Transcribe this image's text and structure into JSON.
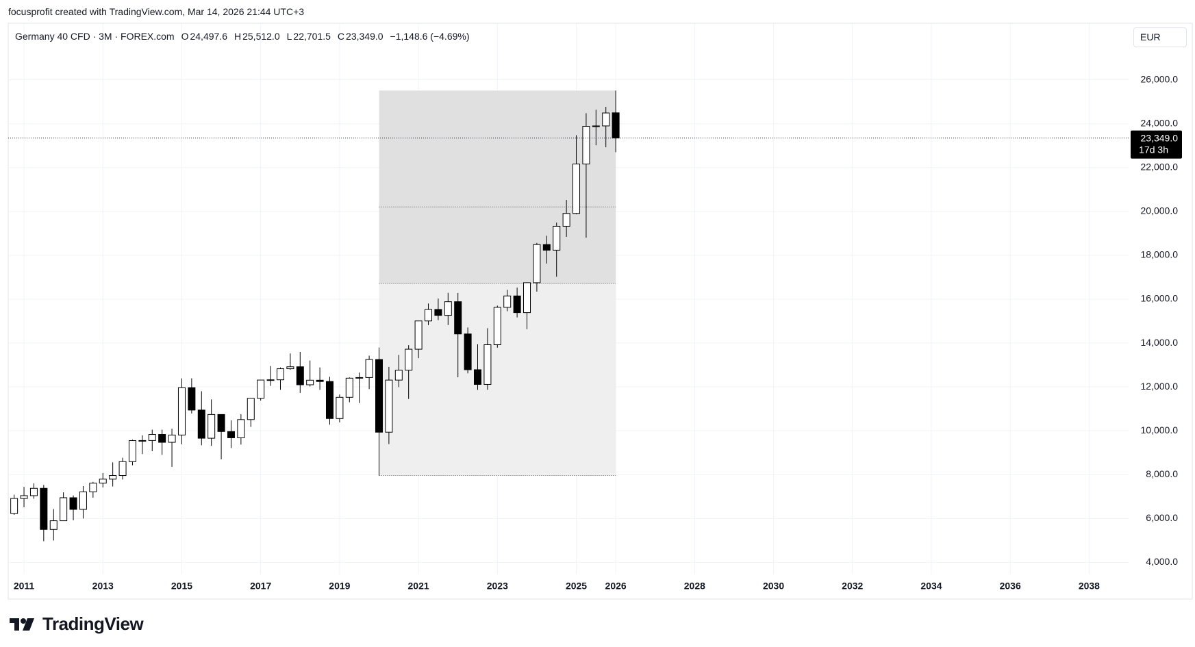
{
  "header": {
    "attribution": "focusprofit created with TradingView.com, Mar 14, 2026 21:44 UTC+3"
  },
  "branding": "TradingView",
  "chart_data": {
    "type": "candlestick",
    "title": "Germany 40 CFD · 3M · FOREX.com",
    "legend_values": [
      {
        "key": "O",
        "value": "24,497.6"
      },
      {
        "key": "H",
        "value": "25,512.0"
      },
      {
        "key": "L",
        "value": "22,701.5"
      },
      {
        "key": "C",
        "value": "23,349.0"
      }
    ],
    "change": "−1,148.6 (−4.69%)",
    "currency": "EUR",
    "countdown": "17d 3h",
    "last_price": {
      "value": 23349,
      "label": "23,349.0"
    },
    "up_color": "#ffffff",
    "down_color": "#000000",
    "border_color": "#000000",
    "grid": true,
    "x": [
      2010.75,
      2011,
      2011.25,
      2011.5,
      2011.75,
      2012,
      2012.25,
      2012.5,
      2012.75,
      2013,
      2013.25,
      2013.5,
      2013.75,
      2014,
      2014.25,
      2014.5,
      2014.75,
      2015,
      2015.25,
      2015.5,
      2015.75,
      2016,
      2016.25,
      2016.5,
      2016.75,
      2017,
      2017.25,
      2017.5,
      2017.75,
      2018,
      2018.25,
      2018.5,
      2018.75,
      2019,
      2019.25,
      2019.5,
      2019.75,
      2020,
      2020.25,
      2020.5,
      2020.75,
      2021,
      2021.25,
      2021.5,
      2021.75,
      2022,
      2022.25,
      2022.5,
      2022.75,
      2023,
      2023.25,
      2023.5,
      2023.75,
      2024,
      2024.25,
      2024.5,
      2024.75,
      2025,
      2025.25,
      2025.5,
      2025.75,
      2026
    ],
    "open": [
      6229,
      6914,
      7041,
      7376,
      5502,
      5898,
      6947,
      6416,
      7216,
      7612,
      7795,
      7959,
      8594,
      9552,
      9556,
      9833,
      9474,
      9806,
      11966,
      10945,
      9660,
      10743,
      9965,
      9680,
      10511,
      11481,
      12313,
      12325,
      12829,
      12918,
      12097,
      12306,
      12247,
      10559,
      11526,
      12399,
      12428,
      13249,
      9936,
      12311,
      12761,
      13719,
      15008,
      15531,
      15261,
      15885,
      14415,
      12784,
      12114,
      13924,
      15629,
      16148,
      15387,
      16752,
      18492,
      18235,
      19325,
      19909,
      22163,
      23880,
      23900,
      24497.6
    ],
    "high": [
      7087,
      7441,
      7600,
      7528,
      6430,
      7194,
      7050,
      7478,
      7672,
      8074,
      8558,
      8770,
      9594,
      9794,
      10051,
      10050,
      10093,
      12390,
      12391,
      11802,
      11430,
      10743,
      10474,
      10753,
      11481,
      12313,
      12951,
      12887,
      13525,
      13596,
      13204,
      12887,
      12461,
      11654,
      12436,
      12656,
      13425,
      13795,
      12913,
      13460,
      13903,
      15008,
      15803,
      16030,
      16290,
      16285,
      14710,
      13948,
      14676,
      15706,
      16427,
      16529,
      16770,
      18567,
      18892,
      19492,
      20523,
      23476,
      24480,
      24639,
      24771,
      25512
    ],
    "low": [
      6166,
      6513,
      6900,
      4966,
      4997,
      5900,
      5915,
      6000,
      6950,
      7418,
      7460,
      7780,
      8427,
      8936,
      9070,
      8903,
      8355,
      9382,
      10791,
      9338,
      9314,
      8699,
      9214,
      9373,
      10175,
      11375,
      12047,
      11868,
      12780,
      11726,
      12020,
      11867,
      10279,
      10386,
      11300,
      11266,
      11900,
      7960,
      9393,
      11990,
      11450,
      13310,
      14817,
      15045,
      14819,
      12439,
      12618,
      11863,
      11869,
      13790,
      15450,
      15168,
      14630,
      16345,
      17626,
      17024,
      18841,
      19870,
      18800,
      23017,
      22926,
      22701.5
    ],
    "close": [
      6914,
      7041,
      7376,
      5502,
      5898,
      6947,
      6416,
      7216,
      7612,
      7795,
      7959,
      8594,
      9552,
      9556,
      9833,
      9474,
      9806,
      11966,
      10945,
      9660,
      10743,
      9965,
      9680,
      10511,
      11481,
      12313,
      12325,
      12829,
      12918,
      12097,
      12306,
      12247,
      10559,
      11526,
      12399,
      12428,
      13249,
      9936,
      12311,
      12761,
      13719,
      15008,
      15531,
      15261,
      15885,
      14415,
      12784,
      12114,
      13924,
      15629,
      16148,
      15387,
      16752,
      18492,
      18235,
      19325,
      19909,
      22163,
      23880,
      23900,
      24490,
      23349
    ],
    "range_box": {
      "x": [
        2020,
        2026
      ],
      "levels": [
        7960,
        16712,
        20204,
        25512
      ]
    },
    "xlim": [
      2010.6,
      2039.0
    ],
    "xticks": [
      2011,
      2013,
      2015,
      2017,
      2019,
      2021,
      2023,
      2025,
      2026,
      2028,
      2030,
      2032,
      2034,
      2036,
      2038
    ],
    "ylim": [
      3450,
      28580
    ],
    "yticks": [
      {
        "value": 4000,
        "label": "4,000.0"
      },
      {
        "value": 6000,
        "label": "6,000.0"
      },
      {
        "value": 8000,
        "label": "8,000.0"
      },
      {
        "value": 10000,
        "label": "10,000.0"
      },
      {
        "value": 12000,
        "label": "12,000.0"
      },
      {
        "value": 14000,
        "label": "14,000.0"
      },
      {
        "value": 16000,
        "label": "16,000.0"
      },
      {
        "value": 18000,
        "label": "18,000.0"
      },
      {
        "value": 20000,
        "label": "20,000.0"
      },
      {
        "value": 22000,
        "label": "22,000.0"
      },
      {
        "value": 24000,
        "label": "24,000.0"
      },
      {
        "value": 26000,
        "label": "26,000.0"
      }
    ]
  }
}
